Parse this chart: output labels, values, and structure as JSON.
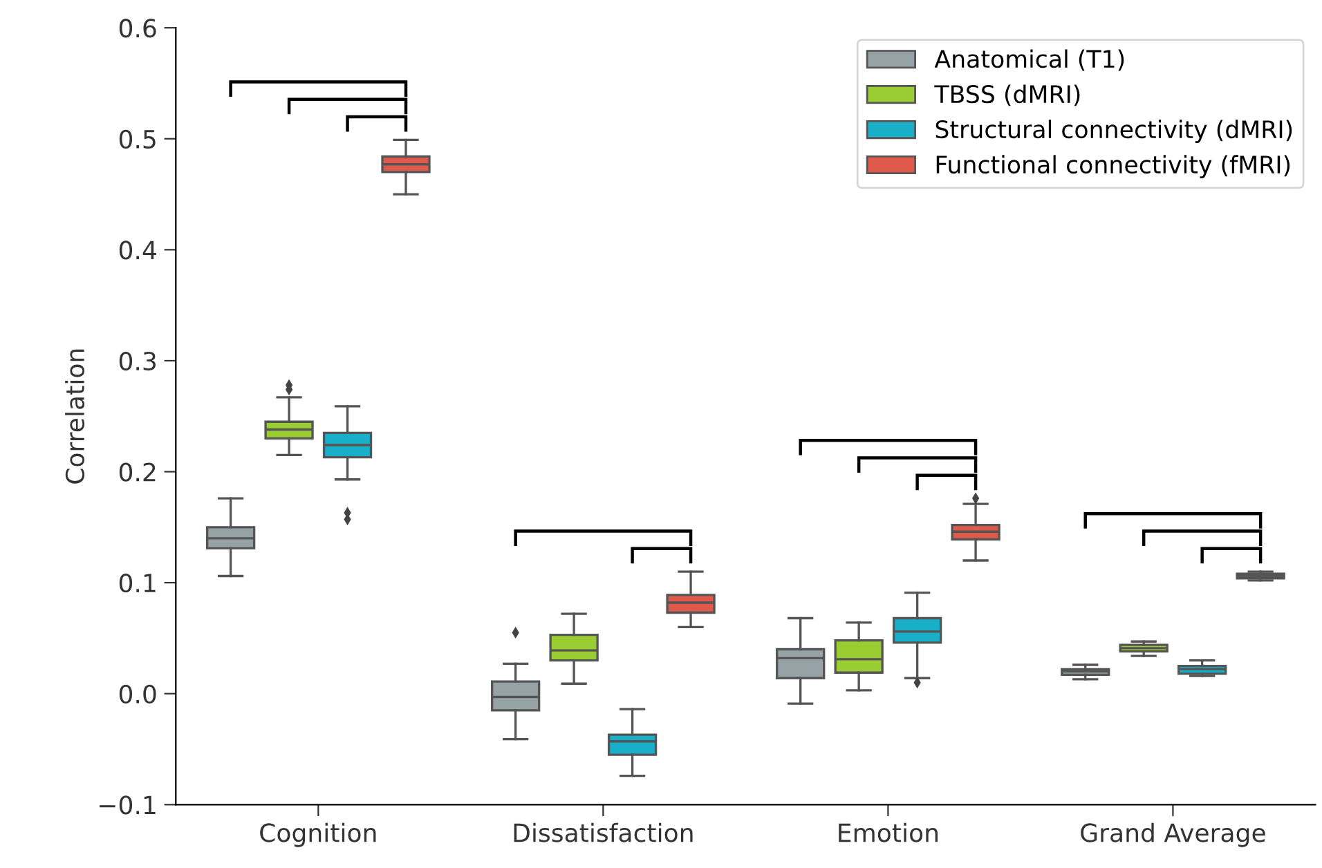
{
  "chart_data": {
    "type": "box",
    "ylabel": "Correlation",
    "categories": [
      "Cognition",
      "Dissatisfaction",
      "Emotion",
      "Grand Average"
    ],
    "ylim": [
      -0.1,
      0.6
    ],
    "yticks": [
      {
        "value": -0.1,
        "label": "−0.1"
      },
      {
        "value": 0,
        "label": "0.0"
      },
      0.1,
      0.2,
      0.3,
      0.4,
      0.5,
      0.6
    ],
    "legend": "top right",
    "grid": false,
    "series": [
      {
        "name": "Anatomical (T1)",
        "color": "#95a3a6",
        "boxes": [
          {
            "low": 0.106,
            "q1": 0.131,
            "median": 0.14,
            "q3": 0.15,
            "high": 0.176
          },
          {
            "low": -0.041,
            "q1": -0.015,
            "median": -0.003,
            "q3": 0.011,
            "high": 0.027,
            "outliers": [
              0.055
            ]
          },
          {
            "low": -0.009,
            "q1": 0.014,
            "median": 0.032,
            "q3": 0.04,
            "high": 0.068
          },
          {
            "low": 0.013,
            "q1": 0.017,
            "median": 0.02,
            "q3": 0.022,
            "high": 0.026
          }
        ]
      },
      {
        "name": "TBSS (dMRI)",
        "color": "#9acd32",
        "boxes": [
          {
            "low": 0.215,
            "q1": 0.23,
            "median": 0.238,
            "q3": 0.245,
            "high": 0.267,
            "outliers": [
              0.278,
              0.274
            ]
          },
          {
            "low": 0.009,
            "q1": 0.03,
            "median": 0.039,
            "q3": 0.053,
            "high": 0.072
          },
          {
            "low": 0.003,
            "q1": 0.019,
            "median": 0.031,
            "q3": 0.048,
            "high": 0.064
          },
          {
            "low": 0.034,
            "q1": 0.038,
            "median": 0.041,
            "q3": 0.044,
            "high": 0.047
          }
        ]
      },
      {
        "name": "Structural connectivity (dMRI)",
        "color": "#1aafc8",
        "boxes": [
          {
            "low": 0.193,
            "q1": 0.213,
            "median": 0.224,
            "q3": 0.235,
            "high": 0.259,
            "outliers": [
              0.163,
              0.157
            ]
          },
          {
            "low": -0.074,
            "q1": -0.055,
            "median": -0.043,
            "q3": -0.037,
            "high": -0.014
          },
          {
            "low": 0.014,
            "q1": 0.046,
            "median": 0.056,
            "q3": 0.068,
            "high": 0.091,
            "outliers": [
              0.01
            ]
          },
          {
            "low": 0.016,
            "q1": 0.018,
            "median": 0.022,
            "q3": 0.025,
            "high": 0.03
          }
        ]
      },
      {
        "name": "Functional connectivity (fMRI)",
        "color": "#e05a4b",
        "boxes": [
          {
            "low": 0.45,
            "q1": 0.47,
            "median": 0.477,
            "q3": 0.484,
            "high": 0.499
          },
          {
            "low": 0.06,
            "q1": 0.073,
            "median": 0.082,
            "q3": 0.089,
            "high": 0.11
          },
          {
            "low": 0.12,
            "q1": 0.139,
            "median": 0.146,
            "q3": 0.152,
            "high": 0.171,
            "outliers": [
              0.176
            ]
          },
          {
            "low": 0.102,
            "q1": 0.104,
            "median": 0.106,
            "q3": 0.108,
            "high": 0.11
          }
        ]
      }
    ]
  }
}
